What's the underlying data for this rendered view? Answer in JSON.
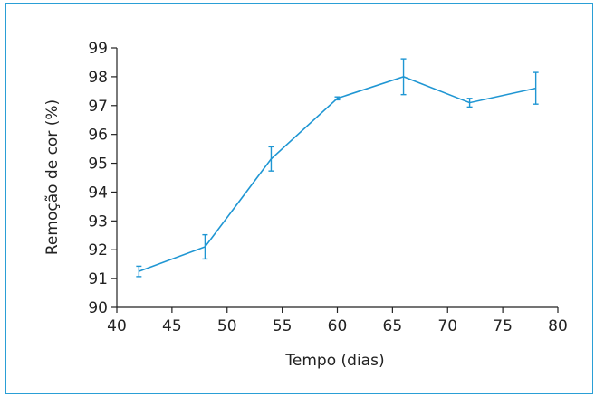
{
  "chart_data": {
    "type": "line",
    "title": "",
    "xlabel": "Tempo (dias)",
    "ylabel": "Remoção de cor (%)",
    "xlim": [
      40,
      80
    ],
    "ylim": [
      90,
      99
    ],
    "xticks": [
      40,
      45,
      50,
      55,
      60,
      65,
      70,
      75,
      80
    ],
    "yticks": [
      90,
      91,
      92,
      93,
      94,
      95,
      96,
      97,
      98,
      99
    ],
    "grid": false,
    "legend": "none",
    "line_color": "#1f96d3",
    "series": [
      {
        "x": [
          42,
          48,
          54,
          60,
          66,
          72,
          78
        ],
        "y": [
          91.25,
          92.1,
          95.15,
          97.25,
          98.0,
          97.1,
          97.6
        ],
        "error": [
          0.18,
          0.42,
          0.42,
          0.05,
          0.62,
          0.15,
          0.55
        ]
      }
    ]
  }
}
